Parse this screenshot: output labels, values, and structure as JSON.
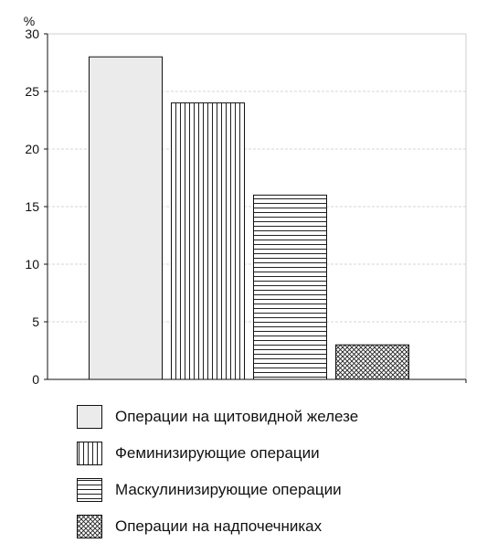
{
  "chart_data": {
    "type": "bar",
    "ylabel": "%",
    "ylim": [
      0,
      30
    ],
    "yticks": [
      0,
      5,
      10,
      15,
      20,
      25,
      30
    ],
    "grid": true,
    "legend_position": "bottom",
    "series": [
      {
        "name": "Операции на щитовидной железе",
        "value": 28,
        "pattern": "solid",
        "color": "#ebebeb"
      },
      {
        "name": "Феминизирующие операции",
        "value": 24,
        "pattern": "vertical-lines",
        "color": "#ffffff"
      },
      {
        "name": "Маскулинизирующие операции",
        "value": 16,
        "pattern": "horizontal-lines",
        "color": "#ffffff"
      },
      {
        "name": "Операции на надпочечниках",
        "value": 3,
        "pattern": "crosshatch",
        "color": "#ffffff"
      }
    ]
  }
}
